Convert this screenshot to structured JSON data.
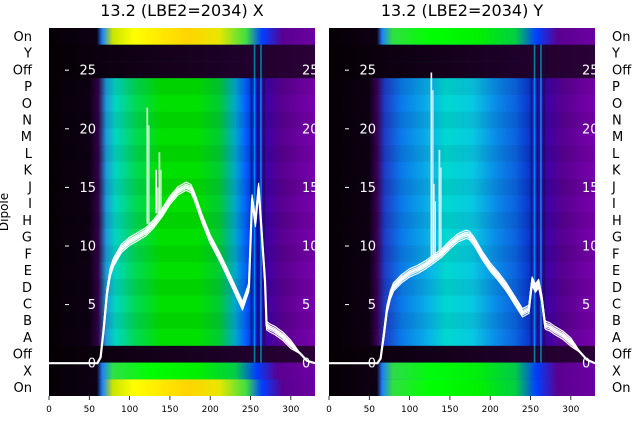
{
  "figure": {
    "ylabel": "Dipole",
    "dipole_labels_bottom_to_top": [
      "On",
      "X",
      "Off",
      "A",
      "B",
      "C",
      "D",
      "E",
      "F",
      "G",
      "H",
      "I",
      "J",
      "K",
      "L",
      "M",
      "N",
      "O",
      "P",
      "Off",
      "Y",
      "On"
    ]
  },
  "chart_data": [
    {
      "type": "heatmap",
      "title": "13.2 (LBE2=2034) X",
      "xlim": [
        0,
        330
      ],
      "xticks": [
        0,
        50,
        100,
        150,
        200,
        250,
        300
      ],
      "overlay_ylim": [
        -2.8,
        28.6
      ],
      "overlay_yticks": [
        0,
        5,
        10,
        15,
        20,
        25
      ],
      "overlay_x": [
        0,
        60,
        64,
        68,
        72,
        76,
        80,
        90,
        100,
        110,
        120,
        130,
        140,
        150,
        160,
        170,
        176,
        180,
        190,
        200,
        210,
        220,
        230,
        240,
        248,
        252,
        256,
        260,
        264,
        268,
        270,
        274,
        280,
        290,
        300,
        312,
        320,
        330
      ],
      "overlay_y": [
        0,
        0,
        0.5,
        3,
        6,
        7.8,
        8.6,
        9.8,
        10.4,
        10.8,
        11.2,
        11.9,
        12.8,
        13.9,
        14.7,
        15.1,
        14.9,
        14.3,
        12.3,
        10.6,
        9.3,
        7.9,
        6.4,
        4.9,
        6.5,
        14,
        12,
        15,
        11,
        7,
        3.2,
        3,
        2.8,
        2.3,
        1.6,
        0.8,
        0.2,
        0
      ],
      "overlay_spikes": [
        {
          "x": 122,
          "y": 21.8
        },
        {
          "x": 133,
          "y": 16.5
        },
        {
          "x": 137,
          "y": 18
        }
      ],
      "bright_gap_rows_bottom": [
        "yellow",
        "green"
      ],
      "grid": false
    },
    {
      "type": "heatmap",
      "title": "13.2 (LBE2=2034) Y",
      "xlim": [
        0,
        330
      ],
      "xticks": [
        0,
        50,
        100,
        150,
        200,
        250,
        300
      ],
      "overlay_ylim": [
        -2.8,
        28.6
      ],
      "overlay_yticks": [
        0,
        5,
        10,
        15,
        20,
        25
      ],
      "overlay_x": [
        0,
        60,
        64,
        68,
        72,
        76,
        80,
        90,
        100,
        110,
        120,
        130,
        140,
        150,
        160,
        170,
        174,
        180,
        190,
        200,
        210,
        220,
        230,
        240,
        248,
        252,
        256,
        260,
        264,
        268,
        270,
        274,
        280,
        290,
        300,
        312,
        320,
        330
      ],
      "overlay_y": [
        0,
        0,
        0.4,
        2.4,
        4.6,
        5.8,
        6.5,
        7.2,
        7.7,
        8,
        8.4,
        8.9,
        9.4,
        10.1,
        10.7,
        11,
        10.9,
        10.4,
        9.2,
        8.2,
        7.4,
        6.5,
        5.4,
        4.3,
        4.6,
        7,
        6.4,
        6.8,
        5.5,
        3.3,
        3.2,
        3.1,
        2.8,
        2.4,
        1.8,
        0.9,
        0.3,
        0
      ],
      "overlay_spikes": [
        {
          "x": 127,
          "y": 24.8
        },
        {
          "x": 137,
          "y": 18.2
        },
        {
          "x": 130,
          "y": 15.3
        }
      ],
      "bright_gap_rows_bottom": [
        "green",
        "green"
      ],
      "grid": false
    }
  ]
}
